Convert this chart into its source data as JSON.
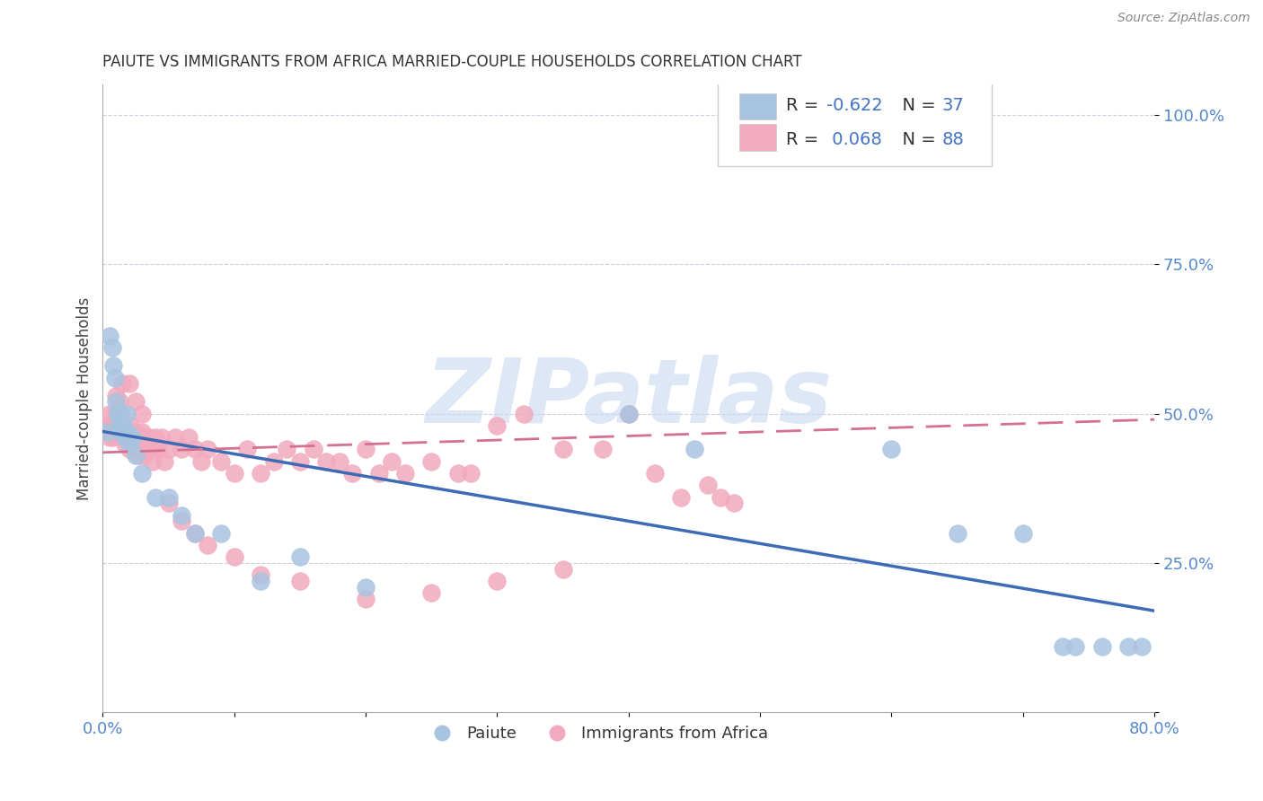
{
  "title": "PAIUTE VS IMMIGRANTS FROM AFRICA MARRIED-COUPLE HOUSEHOLDS CORRELATION CHART",
  "source": "Source: ZipAtlas.com",
  "ylabel": "Married-couple Households",
  "xlim": [
    0.0,
    0.8
  ],
  "ylim": [
    0.0,
    1.05
  ],
  "paiute_R": -0.622,
  "paiute_N": 37,
  "africa_R": 0.068,
  "africa_N": 88,
  "paiute_color": "#a8c4e0",
  "africa_color": "#f2aabe",
  "paiute_line_color": "#3d6bb5",
  "africa_line_color": "#d47090",
  "watermark_color": "#c8d8ef",
  "background_color": "#ffffff",
  "tick_color": "#5588cc",
  "grid_color": "#c8d0dc",
  "paiute_x": [
    0.003,
    0.005,
    0.007,
    0.008,
    0.009,
    0.01,
    0.011,
    0.012,
    0.013,
    0.014,
    0.015,
    0.016,
    0.017,
    0.018,
    0.019,
    0.02,
    0.022,
    0.025,
    0.03,
    0.04,
    0.05,
    0.06,
    0.07,
    0.09,
    0.12,
    0.15,
    0.2,
    0.4,
    0.45,
    0.6,
    0.65,
    0.7,
    0.73,
    0.74,
    0.76,
    0.78,
    0.79
  ],
  "paiute_y": [
    0.47,
    0.63,
    0.61,
    0.58,
    0.56,
    0.52,
    0.5,
    0.5,
    0.48,
    0.47,
    0.48,
    0.47,
    0.46,
    0.5,
    0.47,
    0.45,
    0.46,
    0.43,
    0.4,
    0.36,
    0.36,
    0.33,
    0.3,
    0.3,
    0.22,
    0.26,
    0.21,
    0.5,
    0.44,
    0.44,
    0.3,
    0.3,
    0.11,
    0.11,
    0.11,
    0.11,
    0.11
  ],
  "africa_x": [
    0.003,
    0.004,
    0.005,
    0.006,
    0.007,
    0.008,
    0.009,
    0.01,
    0.011,
    0.012,
    0.013,
    0.014,
    0.015,
    0.016,
    0.017,
    0.018,
    0.019,
    0.02,
    0.021,
    0.022,
    0.023,
    0.024,
    0.025,
    0.027,
    0.028,
    0.03,
    0.032,
    0.033,
    0.035,
    0.037,
    0.038,
    0.04,
    0.042,
    0.045,
    0.047,
    0.05,
    0.055,
    0.06,
    0.065,
    0.07,
    0.075,
    0.08,
    0.09,
    0.1,
    0.11,
    0.12,
    0.13,
    0.14,
    0.15,
    0.16,
    0.17,
    0.18,
    0.19,
    0.2,
    0.21,
    0.22,
    0.23,
    0.25,
    0.27,
    0.28,
    0.3,
    0.32,
    0.35,
    0.38,
    0.4,
    0.42,
    0.44,
    0.46,
    0.47,
    0.48,
    0.005,
    0.01,
    0.015,
    0.02,
    0.025,
    0.03,
    0.04,
    0.05,
    0.06,
    0.07,
    0.08,
    0.1,
    0.12,
    0.15,
    0.2,
    0.25,
    0.3,
    0.35
  ],
  "africa_y": [
    0.48,
    0.47,
    0.46,
    0.48,
    0.47,
    0.46,
    0.47,
    0.5,
    0.48,
    0.5,
    0.52,
    0.5,
    0.48,
    0.46,
    0.45,
    0.47,
    0.46,
    0.44,
    0.48,
    0.46,
    0.46,
    0.45,
    0.47,
    0.44,
    0.43,
    0.47,
    0.43,
    0.46,
    0.46,
    0.44,
    0.42,
    0.46,
    0.44,
    0.46,
    0.42,
    0.44,
    0.46,
    0.44,
    0.46,
    0.44,
    0.42,
    0.44,
    0.42,
    0.4,
    0.44,
    0.4,
    0.42,
    0.44,
    0.42,
    0.44,
    0.42,
    0.42,
    0.4,
    0.44,
    0.4,
    0.42,
    0.4,
    0.42,
    0.4,
    0.4,
    0.48,
    0.5,
    0.44,
    0.44,
    0.5,
    0.4,
    0.36,
    0.38,
    0.36,
    0.35,
    0.5,
    0.53,
    0.55,
    0.55,
    0.52,
    0.5,
    0.45,
    0.35,
    0.32,
    0.3,
    0.28,
    0.26,
    0.23,
    0.22,
    0.19,
    0.2,
    0.22,
    0.24
  ],
  "paiute_trend_x": [
    0.0,
    0.8
  ],
  "paiute_trend_y": [
    0.47,
    0.17
  ],
  "africa_trend_x": [
    0.0,
    0.8
  ],
  "africa_trend_y": [
    0.435,
    0.49
  ]
}
